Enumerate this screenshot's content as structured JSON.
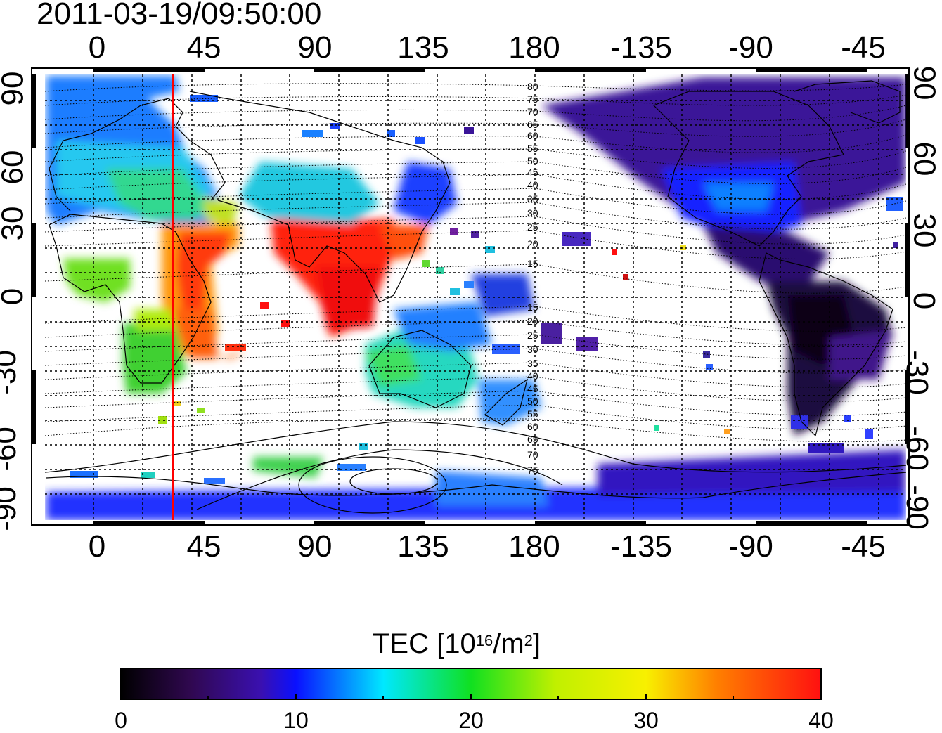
{
  "title": "2011-03-19/09:50:00",
  "x_axis": {
    "top_labels": [
      "0",
      "45",
      "90",
      "135",
      "180",
      "-135",
      "-90",
      "-45"
    ],
    "bottom_labels": [
      "0",
      "45",
      "90",
      "135",
      "180",
      "-135",
      "-90",
      "-45"
    ]
  },
  "y_axis": {
    "left_labels": [
      "90",
      "60",
      "30",
      "0",
      "-30",
      "-60",
      "-90"
    ],
    "right_labels": [
      "90",
      "60",
      "30",
      "0",
      "-30",
      "-60",
      "-90"
    ]
  },
  "contour_labels": {
    "north": [
      "80",
      "75",
      "70",
      "65",
      "60",
      "55",
      "50",
      "45",
      "40",
      "35",
      "30",
      "25",
      "20",
      "15"
    ],
    "south": [
      "15",
      "20",
      "25",
      "30",
      "35",
      "40",
      "45",
      "50",
      "55",
      "60",
      "65",
      "70",
      "75"
    ]
  },
  "colorbar": {
    "title_main": "TEC  [10",
    "title_sup1": "16",
    "title_mid": "/m",
    "title_sup2": "2",
    "title_end": "]",
    "ticks": [
      "0",
      "10",
      "20",
      "30",
      "40"
    ],
    "range": [
      0,
      40
    ],
    "colors": [
      "#000000",
      "#3a0a6e",
      "#0a10ff",
      "#00e8ff",
      "#10e020",
      "#f0f000",
      "#ff2000"
    ]
  },
  "marker_line": {
    "longitude": 32,
    "color": "#ff0000"
  },
  "chart_data": {
    "type": "heatmap",
    "title": "2011-03-19/09:50:00",
    "xlabel": "",
    "ylabel": "",
    "xlim": [
      -20,
      330
    ],
    "ylim": [
      -90,
      90
    ],
    "value_label": "TEC  [10^16/m^2]",
    "value_range": [
      0,
      40
    ],
    "regions": [
      {
        "name": "",
        "lon": [
          -15,
          40
        ],
        "lat": [
          35,
          75
        ],
        "tec": 16
      },
      {
        "name": "",
        "lon": [
          30,
          60
        ],
        "lat": [
          -30,
          30
        ],
        "tec": 33
      },
      {
        "name": "",
        "lon": [
          0,
          30
        ],
        "lat": [
          -35,
          15
        ],
        "tec": 26
      },
      {
        "name": "",
        "lon": [
          70,
          125
        ],
        "lat": [
          -10,
          30
        ],
        "tec": 39
      },
      {
        "name": "",
        "lon": [
          115,
          145
        ],
        "lat": [
          -40,
          -15
        ],
        "tec": 20
      },
      {
        "name": "",
        "lon": [
          120,
          150
        ],
        "lat": [
          30,
          50
        ],
        "tec": 11
      },
      {
        "name": "",
        "lon": [
          190,
          320
        ],
        "lat": [
          30,
          90
        ],
        "tec": 6
      },
      {
        "name": "",
        "lon": [
          280,
          320
        ],
        "lat": [
          -55,
          10
        ],
        "tec": 3
      },
      {
        "name": "",
        "lon": [
          -20,
          330
        ],
        "lat": [
          -90,
          -75
        ],
        "tec": 9
      }
    ]
  }
}
